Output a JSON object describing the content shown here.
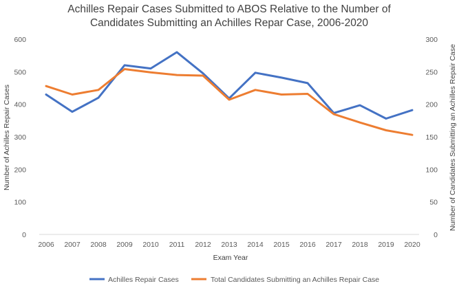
{
  "chart_data": {
    "type": "line",
    "title_lines": [
      "Achilles Repair Cases Submitted to ABOS Relative to the Number of",
      "Candidates Submitting an Achilles Repar Case, 2006-2020"
    ],
    "xlabel": "Exam Year",
    "ylabel_left": "Number of Achilles Repair Cases",
    "ylabel_right": "Number of Candidates Submitting an Achilles Repair Case",
    "x": [
      "2006",
      "2007",
      "2008",
      "2009",
      "2010",
      "2011",
      "2012",
      "2013",
      "2014",
      "2015",
      "2016",
      "2017",
      "2018",
      "2019",
      "2020"
    ],
    "y_left_ticks": [
      "0",
      "100",
      "200",
      "300",
      "400",
      "500",
      "600"
    ],
    "y_right_ticks": [
      "0",
      "50",
      "100",
      "150",
      "200",
      "250",
      "300"
    ],
    "ylim_left": [
      0,
      600
    ],
    "ylim_right": [
      0,
      300
    ],
    "series": [
      {
        "name": "Achilles Repair Cases",
        "axis": "left",
        "color": "#4472C4",
        "values": [
          430,
          377,
          420,
          520,
          510,
          560,
          495,
          418,
          497,
          482,
          465,
          373,
          397,
          356,
          382
        ]
      },
      {
        "name": "Total Candidates Submitting an Achilles Repair Case",
        "axis": "right",
        "color": "#ED7D31",
        "values": [
          228,
          215,
          222,
          254,
          249,
          245,
          244,
          207,
          222,
          215,
          216,
          185,
          172,
          160,
          153
        ]
      }
    ],
    "grid": false,
    "legend": "bottom"
  }
}
